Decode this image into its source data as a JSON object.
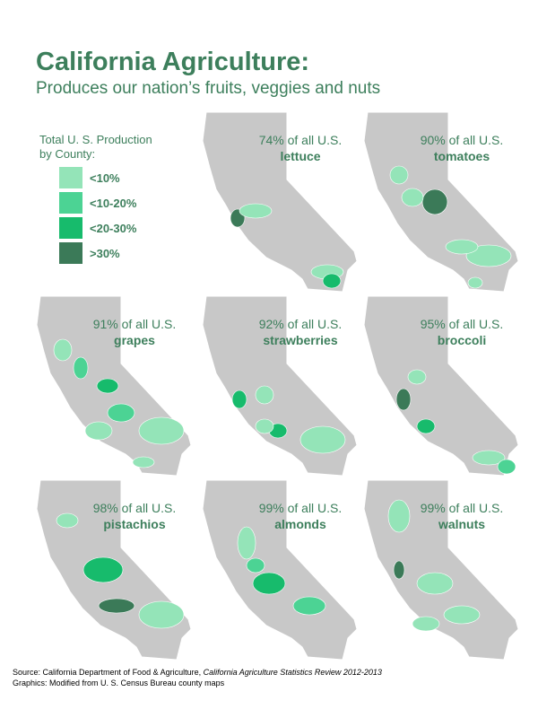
{
  "header": {
    "title": "California Agriculture:",
    "subtitle": "Produces our nation’s fruits, veggies and nuts"
  },
  "legend": {
    "title_line1": "Total U. S. Production",
    "title_line2": "by County:",
    "items": [
      {
        "label": "<10%",
        "color": "#94e4b8"
      },
      {
        "label": "<10-20%",
        "color": "#4cd394"
      },
      {
        "label": "<20-30%",
        "color": "#17bb6c"
      },
      {
        "label": ">30%",
        "color": "#3b7a58"
      }
    ]
  },
  "panels": [
    {
      "share": "74% of all U.S.",
      "crop": "lettuce"
    },
    {
      "share": "90% of all U.S.",
      "crop": "tomatoes"
    },
    {
      "share": "91% of all U.S.",
      "crop": "grapes"
    },
    {
      "share": "92% of all U.S.",
      "crop": "strawberries"
    },
    {
      "share": "95% of all U.S.",
      "crop": "broccoli"
    },
    {
      "share": "98% of all U.S.",
      "crop": "pistachios"
    },
    {
      "share": "99% of all U.S.",
      "crop": "almonds"
    },
    {
      "share": "99% of all U.S.",
      "crop": "walnuts"
    }
  ],
  "footer": {
    "source_prefix": "Source: California Department of Food & Agriculture, ",
    "source_title": "California Agriculture Statistics Review 2012-2013",
    "credit": "Graphics: Modified from U. S. Census Bureau county maps"
  }
}
